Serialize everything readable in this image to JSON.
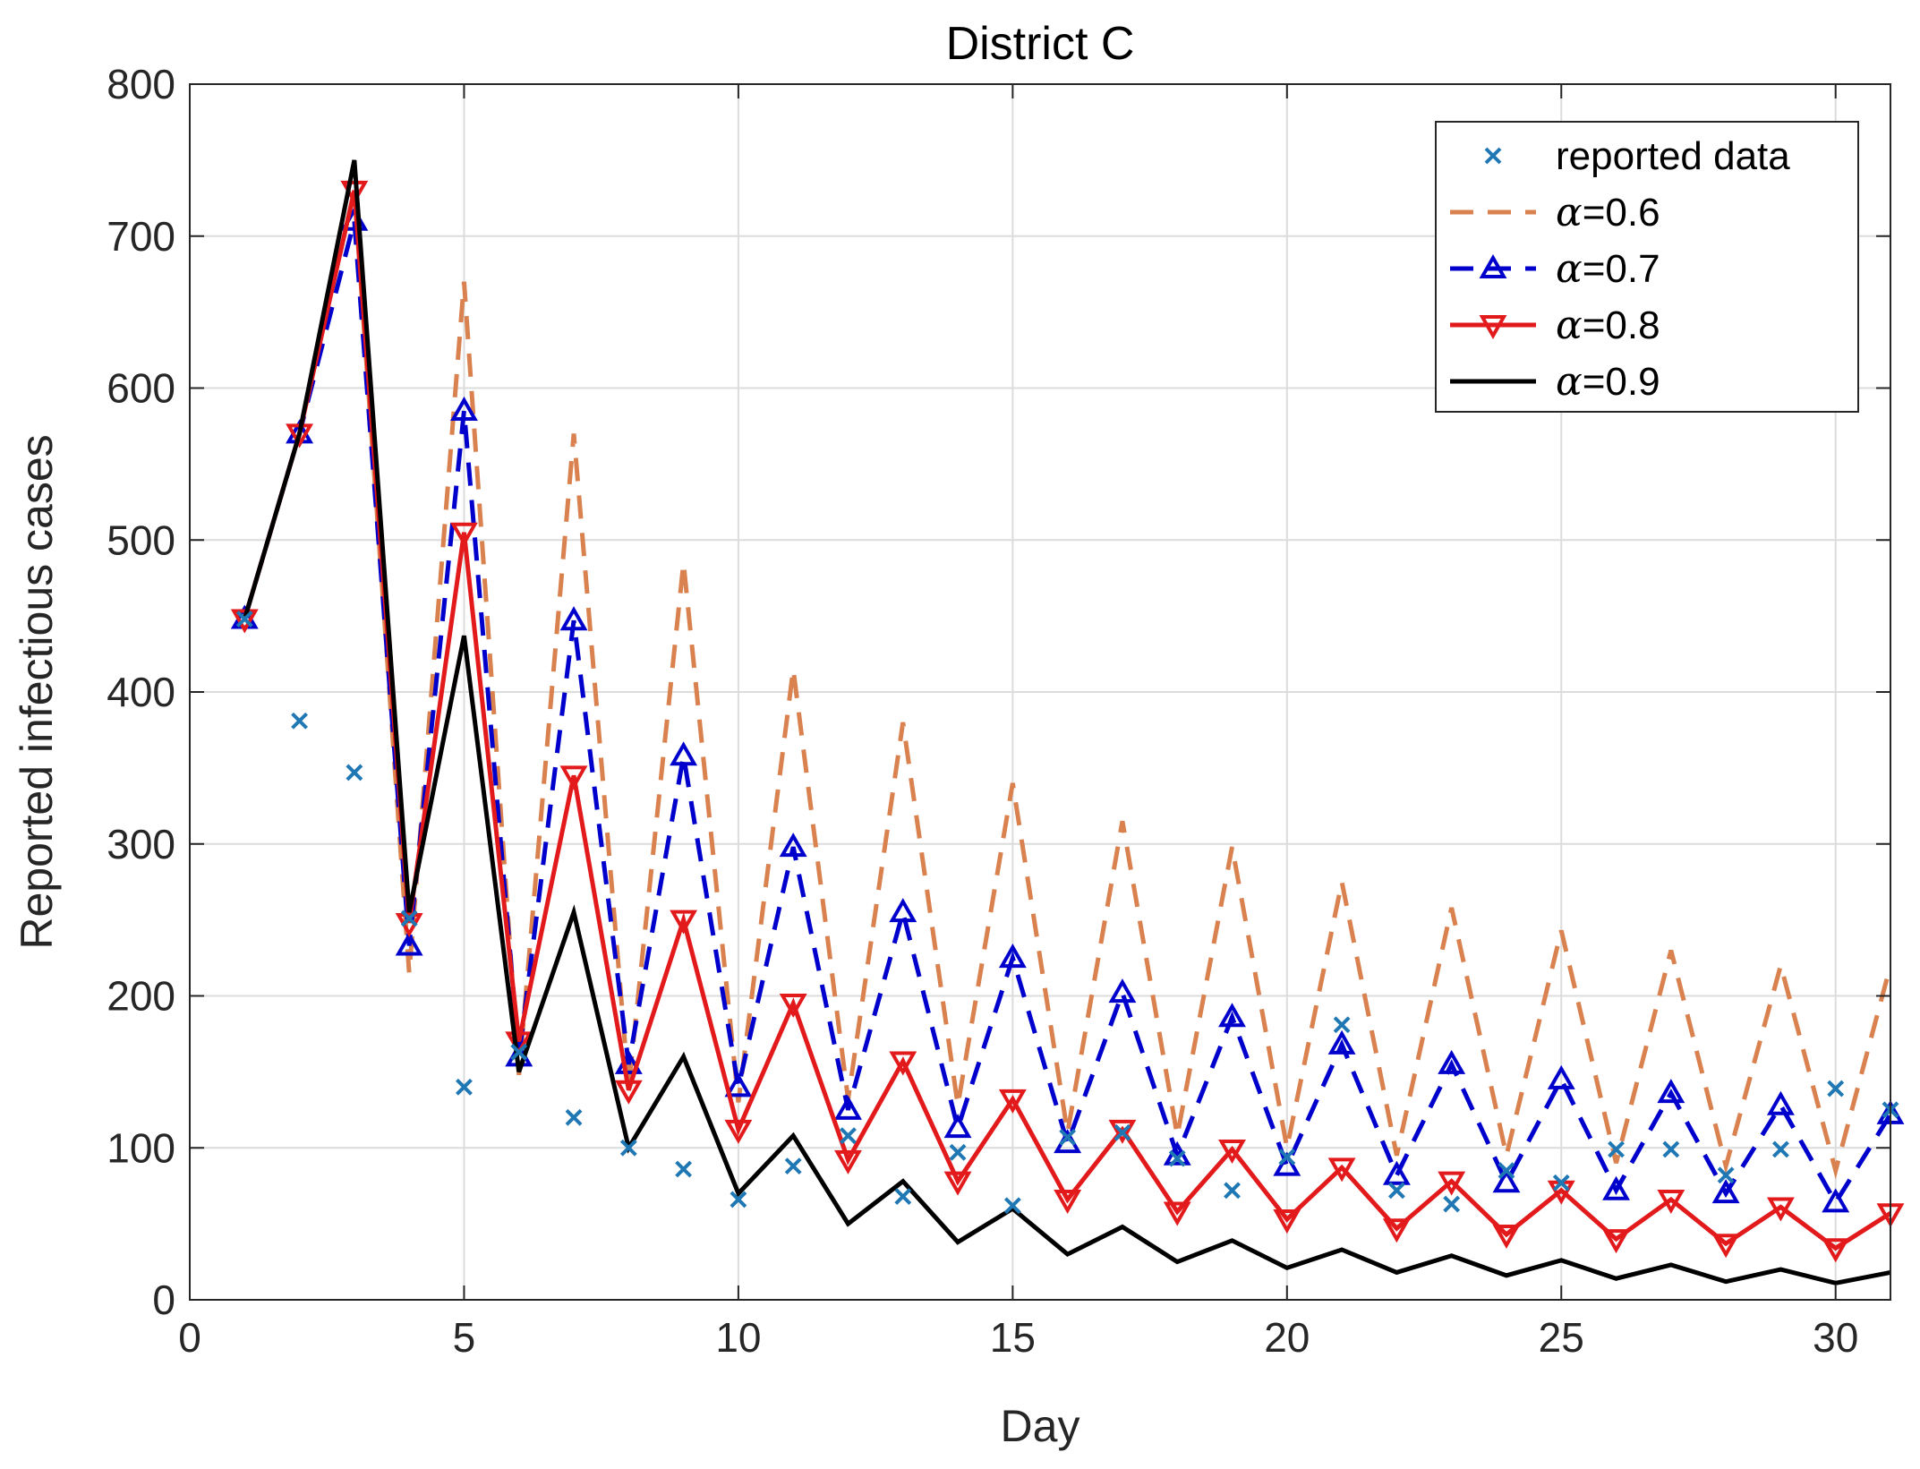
{
  "chart_data": {
    "type": "line",
    "title": "District C",
    "xlabel": "Day",
    "ylabel": "Reported infectious cases",
    "xlim": [
      0,
      31
    ],
    "ylim": [
      0,
      800
    ],
    "xticks": [
      0,
      5,
      10,
      15,
      20,
      25,
      30
    ],
    "yticks": [
      0,
      100,
      200,
      300,
      400,
      500,
      600,
      700,
      800
    ],
    "grid": true,
    "legend_position": "top-right",
    "x": [
      1,
      2,
      3,
      4,
      5,
      6,
      7,
      8,
      9,
      10,
      11,
      12,
      13,
      14,
      15,
      16,
      17,
      18,
      19,
      20,
      21,
      22,
      23,
      24,
      25,
      26,
      27,
      28,
      29,
      30,
      31
    ],
    "series": [
      {
        "name": "reported data",
        "style": "marker-x",
        "color": "#1f78b4",
        "values": [
          448,
          381,
          347,
          251,
          140,
          163,
          120,
          100,
          86,
          66,
          88,
          108,
          68,
          97,
          62,
          107,
          110,
          93,
          72,
          94,
          181,
          72,
          63,
          85,
          77,
          99,
          99,
          82,
          99,
          139,
          125
        ]
      },
      {
        "name": "α=0.6",
        "greek": "α",
        "value_text": "=0.6",
        "style": "dashed",
        "color": "#d9824f",
        "values": [
          448,
          570,
          730,
          215,
          670,
          148,
          570,
          140,
          485,
          130,
          415,
          132,
          380,
          128,
          340,
          110,
          315,
          108,
          298,
          100,
          275,
          95,
          258,
          95,
          243,
          90,
          230,
          88,
          220,
          85,
          220
        ]
      },
      {
        "name": "α=0.7",
        "greek": "α",
        "value_text": "=0.7",
        "style": "dashed-triangle",
        "color": "#0000cc",
        "values": [
          448,
          570,
          710,
          233,
          585,
          160,
          447,
          155,
          358,
          140,
          298,
          125,
          255,
          113,
          225,
          103,
          202,
          95,
          186,
          88,
          168,
          82,
          155,
          77,
          145,
          72,
          136,
          70,
          128,
          64,
          122
        ]
      },
      {
        "name": "α=0.8",
        "greek": "α",
        "value_text": "=0.8",
        "style": "solid-invtriangle",
        "color": "#e31a1c",
        "values": [
          448,
          570,
          730,
          248,
          505,
          170,
          345,
          138,
          250,
          112,
          195,
          92,
          157,
          78,
          132,
          66,
          112,
          58,
          99,
          53,
          87,
          47,
          78,
          43,
          72,
          40,
          66,
          37,
          61,
          34,
          57
        ]
      },
      {
        "name": "α=0.9",
        "greek": "α",
        "value_text": "=0.9",
        "style": "solid",
        "color": "#000000",
        "values": [
          448,
          570,
          750,
          255,
          437,
          150,
          255,
          100,
          160,
          70,
          108,
          50,
          78,
          38,
          60,
          30,
          48,
          25,
          39,
          21,
          33,
          18,
          29,
          16,
          26,
          14,
          23,
          12,
          20,
          11,
          18
        ]
      }
    ]
  }
}
